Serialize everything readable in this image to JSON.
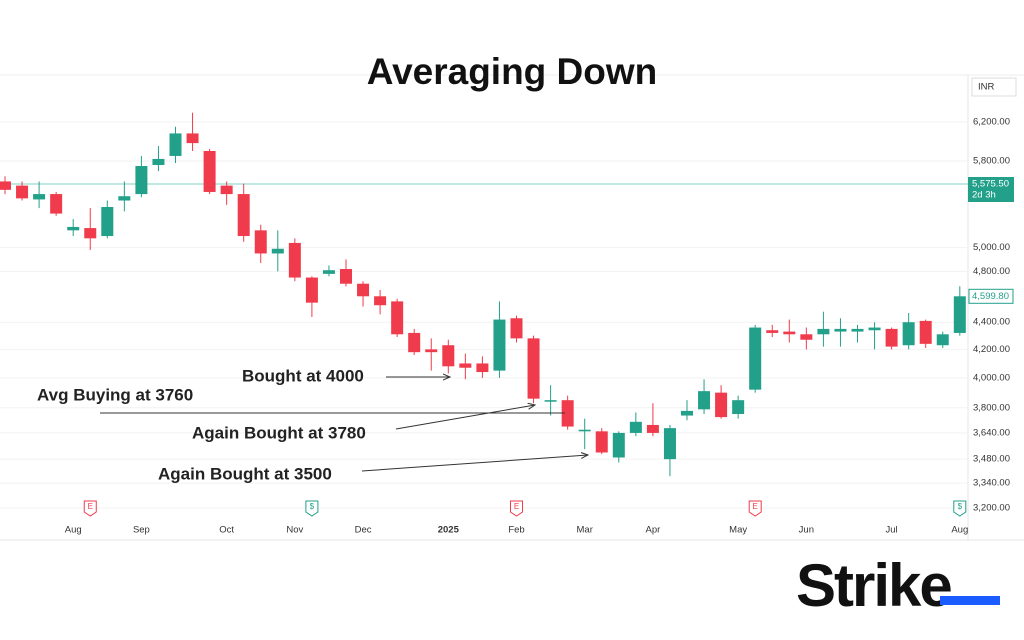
{
  "chart_data": {
    "type": "candlestick",
    "title": "Averaging Down",
    "categories": [
      null,
      null,
      null,
      null,
      "Aug",
      null,
      null,
      null,
      "Sep",
      null,
      null,
      null,
      null,
      "Oct",
      null,
      null,
      null,
      "Nov",
      null,
      null,
      null,
      "Dec",
      null,
      null,
      null,
      null,
      "2025",
      null,
      null,
      null,
      "Feb",
      null,
      null,
      null,
      "Mar",
      null,
      null,
      null,
      "Apr",
      null,
      null,
      null,
      null,
      "May",
      null,
      null,
      null,
      "Jun",
      null,
      null,
      null,
      null,
      "Jul",
      null,
      null,
      null,
      "Aug"
    ],
    "open": [
      5600,
      5560,
      5430,
      5480,
      5150,
      5170,
      5100,
      5420,
      5480,
      5760,
      5850,
      6080,
      5900,
      5560,
      5480,
      5150,
      4950,
      5040,
      4750,
      4780,
      4820,
      4700,
      4600,
      4560,
      4320,
      4200,
      4230,
      4100,
      4100,
      4050,
      4430,
      4280,
      3840,
      3850,
      3650,
      3650,
      3490,
      3640,
      3690,
      3480,
      3750,
      3790,
      3900,
      3760,
      3920,
      4340,
      4330,
      4310,
      4310,
      4330,
      4330,
      4340,
      4350,
      4230,
      4410,
      4230,
      4320
    ],
    "high": [
      5650,
      5600,
      5600,
      5500,
      5250,
      5350,
      5420,
      5600,
      5850,
      5950,
      6150,
      6300,
      5920,
      5600,
      5580,
      5200,
      5150,
      5080,
      4760,
      4850,
      4900,
      4720,
      4650,
      4580,
      4350,
      4280,
      4270,
      4170,
      4150,
      4560,
      4450,
      4300,
      3950,
      3880,
      3730,
      3670,
      3650,
      3770,
      3830,
      3690,
      3850,
      3990,
      3950,
      3880,
      4380,
      4380,
      4420,
      4360,
      4480,
      4430,
      4380,
      4400,
      4360,
      4470,
      4420,
      4330,
      4680
    ],
    "low": [
      5480,
      5420,
      5350,
      5280,
      5100,
      4980,
      5080,
      5320,
      5450,
      5700,
      5780,
      5900,
      5480,
      5380,
      5050,
      4870,
      4800,
      4720,
      4440,
      4760,
      4680,
      4520,
      4460,
      4290,
      4160,
      4050,
      4030,
      3990,
      4000,
      4000,
      4250,
      3830,
      3750,
      3660,
      3540,
      3510,
      3460,
      3620,
      3620,
      3380,
      3720,
      3760,
      3730,
      3730,
      3900,
      4290,
      4250,
      4200,
      4220,
      4220,
      4250,
      4200,
      4200,
      4200,
      4210,
      4210,
      4300
    ],
    "close": [
      5520,
      5440,
      5480,
      5300,
      5180,
      5080,
      5360,
      5460,
      5750,
      5820,
      6080,
      5980,
      5500,
      5480,
      5100,
      4950,
      4990,
      4750,
      4550,
      4810,
      4700,
      4600,
      4530,
      4310,
      4180,
      4180,
      4080,
      4070,
      4040,
      4420,
      4280,
      3860,
      3850,
      3680,
      3660,
      3520,
      3640,
      3710,
      3640,
      3670,
      3780,
      3910,
      3740,
      3850,
      4360,
      4320,
      4310,
      4270,
      4350,
      4350,
      4350,
      4360,
      4220,
      4400,
      4240,
      4310,
      4599.8
    ],
    "up_color": "#22a08a",
    "down_color": "#ef3b4b",
    "log_scale": true,
    "grid": true,
    "ylim": [
      3030,
      6720
    ],
    "yticks": [
      {
        "value": 3200,
        "label": "3,200.00"
      },
      {
        "value": 3340,
        "label": "3,340.00"
      },
      {
        "value": 3480,
        "label": "3,480.00"
      },
      {
        "value": 3640,
        "label": "3,640.00"
      },
      {
        "value": 3800,
        "label": "3,800.00"
      },
      {
        "value": 4000,
        "label": "4,000.00"
      },
      {
        "value": 4200,
        "label": "4,200.00"
      },
      {
        "value": 4400,
        "label": "4,400.00"
      },
      {
        "value": 4800,
        "label": "4,800.00"
      },
      {
        "value": 5000,
        "label": "5,000.00"
      },
      {
        "value": 5800,
        "label": "5,800.00"
      },
      {
        "value": 6200,
        "label": "6,200.00"
      }
    ],
    "currency": "INR",
    "price_line": {
      "value": 5575.5,
      "label": "5,575.50",
      "countdown": "2d 3h"
    },
    "last_close_label": {
      "value": 4599.8,
      "label": "4,599.80"
    },
    "events": [
      "E",
      "$",
      "E",
      "E",
      "$"
    ],
    "annotations": [
      "Bought at 4000",
      "Avg Buying at 3760",
      "Again Bought at 3780",
      "Again Bought at 3500"
    ]
  },
  "brand": "Strike"
}
